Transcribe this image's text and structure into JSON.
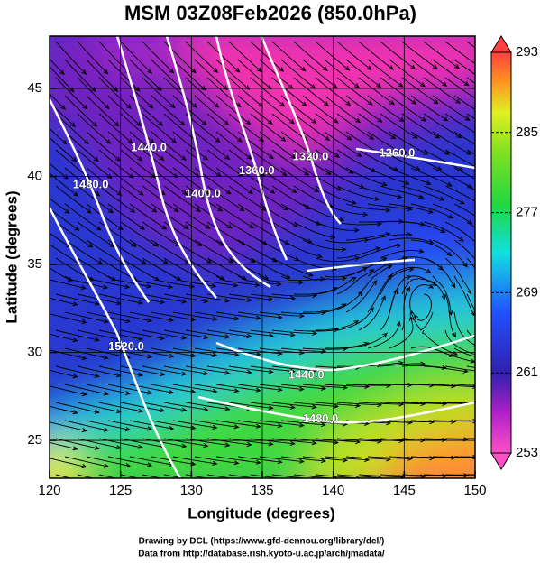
{
  "chart_data": {
    "type": "map",
    "title": "MSM 03Z08Feb2026 (850.0hPa)",
    "x_label": "Longitude (degrees)",
    "y_label": "Latitude  (degrees)",
    "xlim": [
      120,
      150
    ],
    "ylim": [
      22.85,
      47.97
    ],
    "xticks": [
      120,
      125,
      130,
      135,
      140,
      145,
      150
    ],
    "yticks": [
      25,
      30,
      35,
      40,
      45
    ],
    "grid": true,
    "contour_color": "#ffffff",
    "contour_labels": [
      {
        "text": "1260.0",
        "lon": 144.5,
        "lat": 41.3
      },
      {
        "text": "1320.0",
        "lon": 138.4,
        "lat": 41.1
      },
      {
        "text": "1360.0",
        "lon": 134.6,
        "lat": 40.3
      },
      {
        "text": "1400.0",
        "lon": 130.8,
        "lat": 39.0
      },
      {
        "text": "1440.0",
        "lon": 127.0,
        "lat": 41.6
      },
      {
        "text": "1480.0",
        "lon": 122.9,
        "lat": 39.5
      },
      {
        "text": "1520.0",
        "lon": 125.4,
        "lat": 30.3
      },
      {
        "text": "1440.0",
        "lon": 138.1,
        "lat": 28.7
      },
      {
        "text": "1480.0",
        "lon": 139.1,
        "lat": 26.2
      }
    ],
    "colorbar": {
      "lim": [
        253,
        293
      ],
      "ticks": [
        253,
        261,
        269,
        277,
        285,
        293
      ]
    }
  },
  "footer": [
    "Drawing by DCL (https://www.gfd-dennou.org/library/dcl/)",
    "Data from http://database.rish.kyoto-u.ac.jp/arch/jmadata/"
  ]
}
